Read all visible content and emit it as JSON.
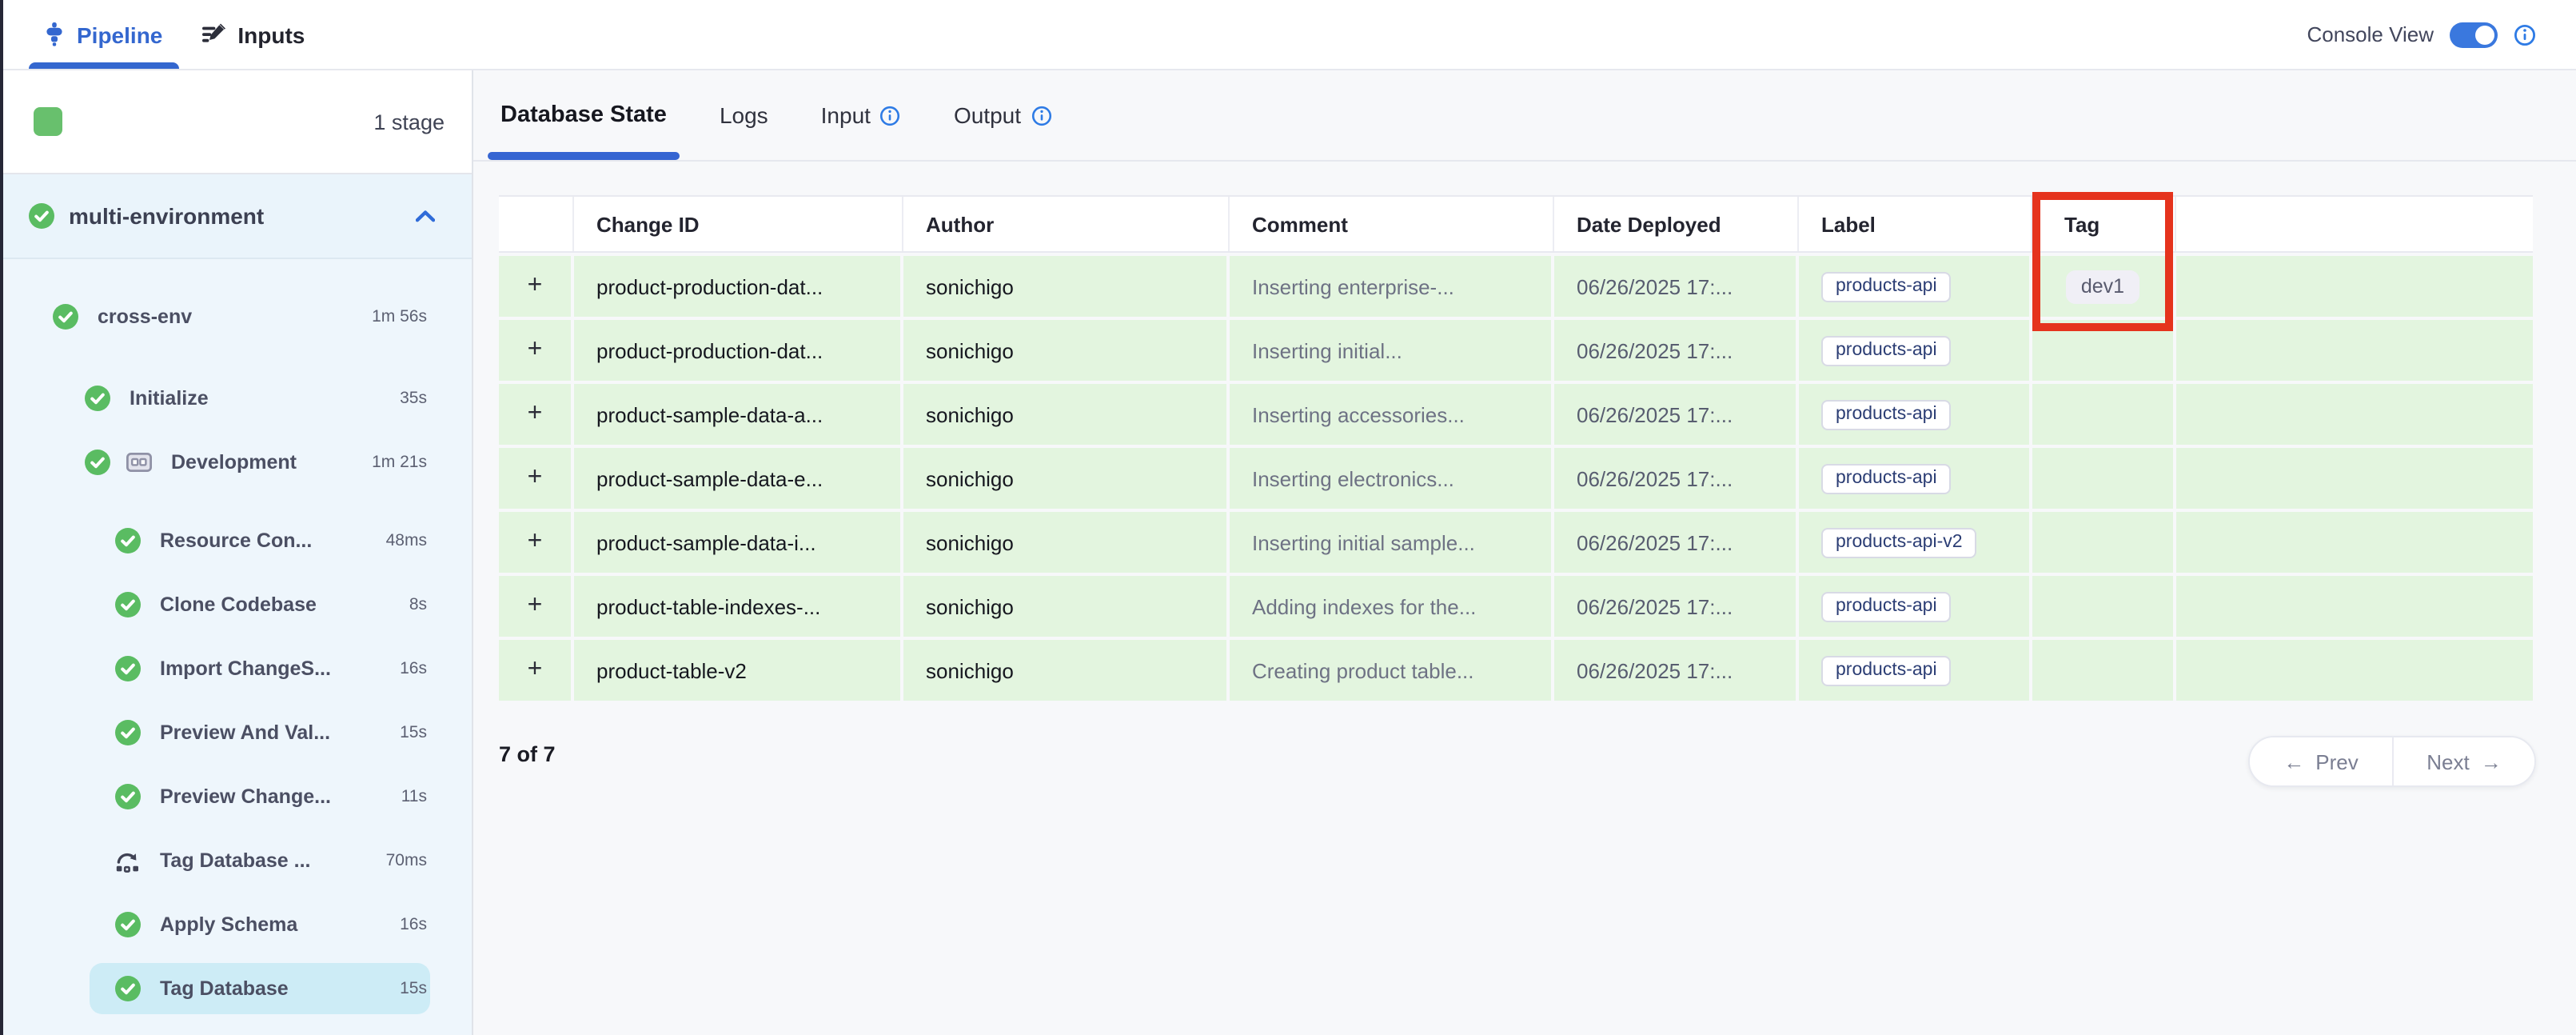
{
  "top_bar": {
    "tabs": [
      {
        "label": "Pipeline",
        "active": true
      },
      {
        "label": "Inputs",
        "active": false
      }
    ],
    "console_view_label": "Console View",
    "console_view_on": true
  },
  "sidebar": {
    "stage_count": "1 stage",
    "group_label": "multi-environment",
    "steps": [
      {
        "label": "cross-env",
        "duration": "1m 56s",
        "indent": 1,
        "icon": "check"
      },
      {
        "label": "Initialize",
        "duration": "35s",
        "indent": 2,
        "icon": "check"
      },
      {
        "label": "Development",
        "duration": "1m 21s",
        "indent": 2,
        "icon": "check",
        "extra_icon": "matrix"
      },
      {
        "label": "Resource Con...",
        "duration": "48ms",
        "indent": 3,
        "icon": "check"
      },
      {
        "label": "Clone Codebase",
        "duration": "8s",
        "indent": 3,
        "icon": "check"
      },
      {
        "label": "Import ChangeS...",
        "duration": "16s",
        "indent": 3,
        "icon": "check"
      },
      {
        "label": "Preview And Val...",
        "duration": "15s",
        "indent": 3,
        "icon": "check"
      },
      {
        "label": "Preview Change...",
        "duration": "11s",
        "indent": 3,
        "icon": "check"
      },
      {
        "label": "Tag Database ...",
        "duration": "70ms",
        "indent": 3,
        "icon": "rollback"
      },
      {
        "label": "Apply Schema",
        "duration": "16s",
        "indent": 3,
        "icon": "check"
      },
      {
        "label": "Tag Database",
        "duration": "15s",
        "indent": 3,
        "icon": "check",
        "selected": true
      }
    ]
  },
  "main": {
    "tabs": [
      {
        "label": "Database State",
        "active": true,
        "info": false
      },
      {
        "label": "Logs",
        "active": false,
        "info": false
      },
      {
        "label": "Input",
        "active": false,
        "info": true
      },
      {
        "label": "Output",
        "active": false,
        "info": true
      }
    ],
    "table": {
      "columns": [
        "",
        "Change ID",
        "Author",
        "Comment",
        "Date Deployed",
        "Label",
        "Tag",
        ""
      ],
      "expand_symbol": "+",
      "rows": [
        {
          "change_id": "product-production-dat...",
          "author": "sonichigo",
          "comment": "Inserting enterprise-...",
          "date": "06/26/2025 17:...",
          "label": "products-api",
          "tag": "dev1"
        },
        {
          "change_id": "product-production-dat...",
          "author": "sonichigo",
          "comment": "Inserting initial...",
          "date": "06/26/2025 17:...",
          "label": "products-api",
          "tag": ""
        },
        {
          "change_id": "product-sample-data-a...",
          "author": "sonichigo",
          "comment": "Inserting accessories...",
          "date": "06/26/2025 17:...",
          "label": "products-api",
          "tag": ""
        },
        {
          "change_id": "product-sample-data-e...",
          "author": "sonichigo",
          "comment": "Inserting electronics...",
          "date": "06/26/2025 17:...",
          "label": "products-api",
          "tag": ""
        },
        {
          "change_id": "product-sample-data-i...",
          "author": "sonichigo",
          "comment": "Inserting initial sample...",
          "date": "06/26/2025 17:...",
          "label": "products-api-v2",
          "tag": ""
        },
        {
          "change_id": "product-table-indexes-...",
          "author": "sonichigo",
          "comment": "Adding indexes for the...",
          "date": "06/26/2025 17:...",
          "label": "products-api",
          "tag": ""
        },
        {
          "change_id": "product-table-v2",
          "author": "sonichigo",
          "comment": "Creating product table...",
          "date": "06/26/2025 17:...",
          "label": "products-api",
          "tag": ""
        }
      ],
      "summary": "7 of 7",
      "pagination": {
        "arrow_left": "←",
        "prev": "Prev",
        "next": "Next",
        "arrow_right": "→"
      }
    }
  },
  "colors": {
    "accent_blue": "#3467cf",
    "toggle_blue": "#3a78de",
    "success_green": "#5abc62",
    "stage_green": "#68c06d",
    "row_green": "#e3f5df",
    "sidebar_bg": "#eef6fc",
    "selected_step_bg": "#cdecf6",
    "label_badge_text": "#2b3d74",
    "tag_badge_bg": "#f0eff6",
    "annotation_red": "#e5331d"
  }
}
